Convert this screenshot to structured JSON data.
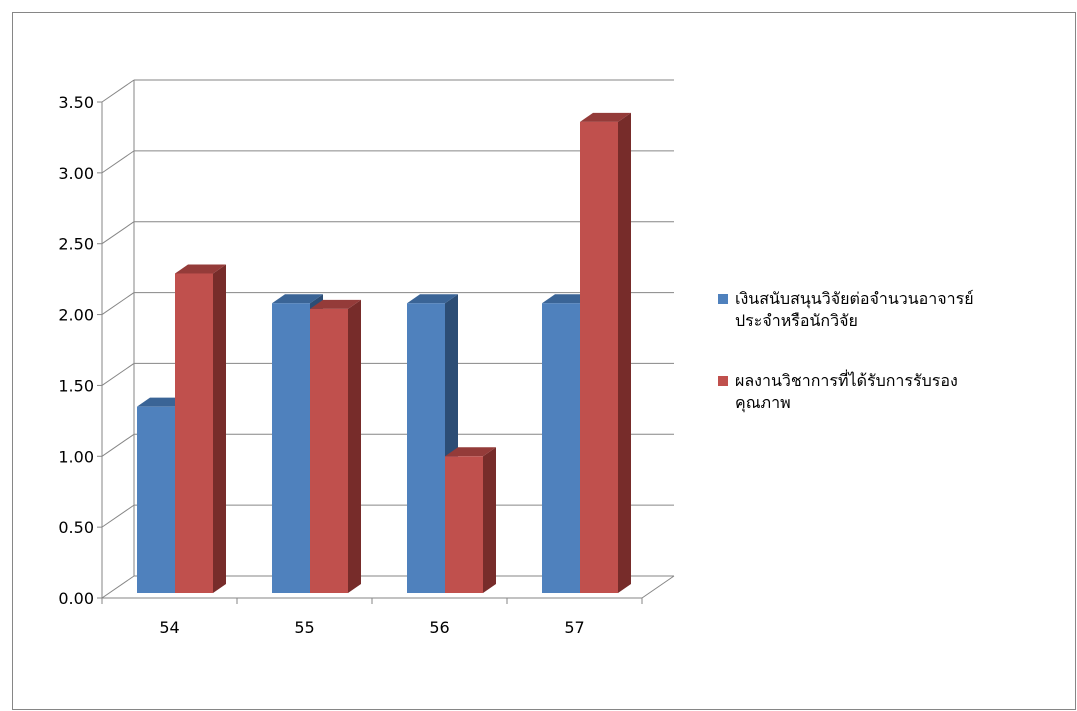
{
  "chart_data": {
    "type": "bar",
    "categories": [
      "54",
      "55",
      "56",
      "57"
    ],
    "series": [
      {
        "name": "เงินสนับสนุนวิจัยต่อจำนวนอาจารย์ประจำหรือนักวิจัย",
        "legend_lines": [
          "เงินสนับสนุนวิจัยต่อจำนวนอาจารย์",
          "ประจำหรือนักวิจัย"
        ],
        "values": [
          1.35,
          2.08,
          2.08,
          2.08
        ],
        "color": "#4F81BD",
        "side_color": "#2C4D75",
        "top_color": "#3A6496"
      },
      {
        "name": "ผลงานวิชาการที่ได้รับการรับรองคุณภาพ",
        "legend_lines": [
          "ผลงานวิชาการที่ได้รับการรับรอง",
          "คุณภาพ"
        ],
        "values": [
          2.29,
          2.04,
          1.0,
          3.36
        ],
        "color": "#C0504D",
        "side_color": "#772C2A",
        "top_color": "#943B39"
      }
    ],
    "y_ticks": [
      "0.00",
      "0.50",
      "1.00",
      "1.50",
      "2.00",
      "2.50",
      "3.00",
      "3.50"
    ],
    "ylim": [
      0,
      3.5
    ],
    "grid": true,
    "legend_position": "right",
    "title": "",
    "xlabel": "",
    "ylabel": ""
  }
}
